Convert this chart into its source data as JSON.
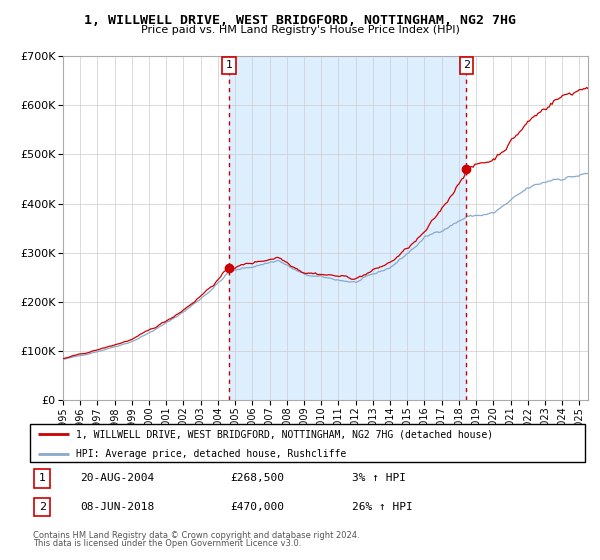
{
  "title1": "1, WILLWELL DRIVE, WEST BRIDGFORD, NOTTINGHAM, NG2 7HG",
  "title2": "Price paid vs. HM Land Registry's House Price Index (HPI)",
  "ylim": [
    0,
    700000
  ],
  "yticks": [
    0,
    100000,
    200000,
    300000,
    400000,
    500000,
    600000,
    700000
  ],
  "ytick_labels": [
    "£0",
    "£100K",
    "£200K",
    "£300K",
    "£400K",
    "£500K",
    "£600K",
    "£700K"
  ],
  "xmin": 1995.0,
  "xmax": 2025.5,
  "purchase1_x": 2004.64,
  "purchase1_y": 268500,
  "purchase2_x": 2018.44,
  "purchase2_y": 470000,
  "legend1": "1, WILLWELL DRIVE, WEST BRIDGFORD, NOTTINGHAM, NG2 7HG (detached house)",
  "legend2": "HPI: Average price, detached house, Rushcliffe",
  "table_rows": [
    {
      "label": "1",
      "date": "20-AUG-2004",
      "price": "£268,500",
      "hpi": "3% ↑ HPI"
    },
    {
      "label": "2",
      "date": "08-JUN-2018",
      "price": "£470,000",
      "hpi": "26% ↑ HPI"
    }
  ],
  "footnote_line1": "Contains HM Land Registry data © Crown copyright and database right 2024.",
  "footnote_line2": "This data is licensed under the Open Government Licence v3.0.",
  "red": "#cc0000",
  "blue": "#88aacc",
  "shade_color": "#ddeeff",
  "grid_color": "#cccccc",
  "box_edge": "#cc0000"
}
